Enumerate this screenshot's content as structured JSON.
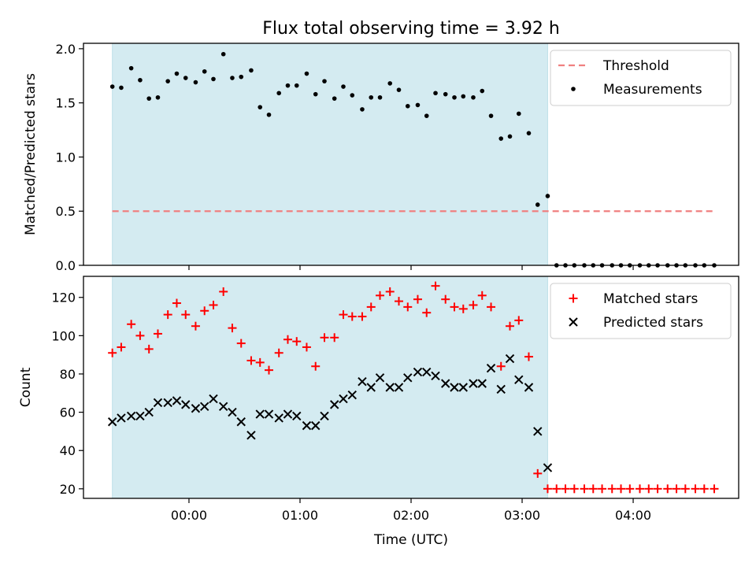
{
  "title": "Flux total observing time = 3.92 h",
  "chart_data": [
    {
      "type": "scatter",
      "panel": "top",
      "ylabel": "Matched/Predicted stars",
      "ylim": [
        0,
        2.05
      ],
      "yticks": [
        0.0,
        0.5,
        1.0,
        1.5,
        2.0
      ],
      "ytick_labels": [
        "0.0",
        "0.5",
        "1.0",
        "1.5",
        "2.0"
      ],
      "xlim_hours": [
        -0.95,
        4.95
      ],
      "shaded_span_hours": [
        -0.69,
        3.23
      ],
      "shade_color": "#d4ebf1",
      "legend_position": "upper-right",
      "threshold": {
        "name": "Threshold",
        "value": 0.5,
        "x_range_hours": [
          -0.69,
          4.73
        ],
        "color": "#f08080",
        "style": "dashed"
      },
      "series": [
        {
          "name": "Measurements",
          "color": "#000000",
          "marker": "dot",
          "x_hours": [
            -0.69,
            -0.61,
            -0.52,
            -0.44,
            -0.36,
            -0.28,
            -0.19,
            -0.11,
            -0.03,
            0.06,
            0.14,
            0.22,
            0.31,
            0.39,
            0.47,
            0.56,
            0.64,
            0.72,
            0.81,
            0.89,
            0.97,
            1.06,
            1.14,
            1.22,
            1.31,
            1.39,
            1.47,
            1.56,
            1.64,
            1.72,
            1.81,
            1.89,
            1.97,
            2.06,
            2.14,
            2.22,
            2.31,
            2.39,
            2.47,
            2.56,
            2.64,
            2.72,
            2.81,
            2.89,
            2.97,
            3.06,
            3.14,
            3.23,
            3.31,
            3.39,
            3.47,
            3.56,
            3.64,
            3.72,
            3.81,
            3.89,
            3.97,
            4.06,
            4.14,
            4.22,
            4.31,
            4.39,
            4.47,
            4.56,
            4.64,
            4.73
          ],
          "y": [
            1.65,
            1.64,
            1.82,
            1.71,
            1.54,
            1.55,
            1.7,
            1.77,
            1.73,
            1.69,
            1.79,
            1.72,
            1.95,
            1.73,
            1.74,
            1.8,
            1.46,
            1.39,
            1.59,
            1.66,
            1.66,
            1.77,
            1.58,
            1.7,
            1.54,
            1.65,
            1.57,
            1.44,
            1.55,
            1.55,
            1.68,
            1.62,
            1.47,
            1.48,
            1.38,
            1.59,
            1.58,
            1.55,
            1.56,
            1.55,
            1.61,
            1.38,
            1.17,
            1.19,
            1.4,
            1.22,
            0.56,
            0.64,
            0,
            0,
            0,
            0,
            0,
            0,
            0,
            0,
            0,
            0,
            0,
            0,
            0,
            0,
            0,
            0,
            0,
            0
          ]
        }
      ]
    },
    {
      "type": "scatter",
      "panel": "bottom",
      "xlabel": "Time (UTC)",
      "ylabel": "Count",
      "ylim": [
        15,
        131
      ],
      "yticks": [
        20,
        40,
        60,
        80,
        100,
        120
      ],
      "ytick_labels": [
        "20",
        "40",
        "60",
        "80",
        "100",
        "120"
      ],
      "xlim_hours": [
        -0.95,
        4.95
      ],
      "xticks_hours": [
        0,
        1,
        2,
        3,
        4
      ],
      "xtick_labels": [
        "00:00",
        "01:00",
        "02:00",
        "03:00",
        "04:00"
      ],
      "shaded_span_hours": [
        -0.69,
        3.23
      ],
      "legend_position": "upper-right",
      "series": [
        {
          "name": "Matched stars",
          "color": "#ff0000",
          "marker": "plus",
          "x_hours": [
            -0.69,
            -0.61,
            -0.52,
            -0.44,
            -0.36,
            -0.28,
            -0.19,
            -0.11,
            -0.03,
            0.06,
            0.14,
            0.22,
            0.31,
            0.39,
            0.47,
            0.56,
            0.64,
            0.72,
            0.81,
            0.89,
            0.97,
            1.06,
            1.14,
            1.22,
            1.31,
            1.39,
            1.47,
            1.56,
            1.64,
            1.72,
            1.81,
            1.89,
            1.97,
            2.06,
            2.14,
            2.22,
            2.31,
            2.39,
            2.47,
            2.56,
            2.64,
            2.72,
            2.81,
            2.89,
            2.97,
            3.06,
            3.14,
            3.23,
            3.31,
            3.39,
            3.47,
            3.56,
            3.64,
            3.72,
            3.81,
            3.89,
            3.97,
            4.06,
            4.14,
            4.22,
            4.31,
            4.39,
            4.47,
            4.56,
            4.64,
            4.73
          ],
          "y": [
            91,
            94,
            106,
            100,
            93,
            101,
            111,
            117,
            111,
            105,
            113,
            116,
            123,
            104,
            96,
            87,
            86,
            82,
            91,
            98,
            97,
            94,
            84,
            99,
            99,
            111,
            110,
            110,
            115,
            121,
            123,
            118,
            115,
            119,
            112,
            126,
            119,
            115,
            114,
            116,
            121,
            115,
            84,
            105,
            108,
            89,
            28,
            20,
            20,
            20,
            20,
            20,
            20,
            20,
            20,
            20,
            20,
            20,
            20,
            20,
            20,
            20,
            20,
            20,
            20,
            20
          ]
        },
        {
          "name": "Predicted stars",
          "color": "#000000",
          "marker": "x",
          "x_hours": [
            -0.69,
            -0.61,
            -0.52,
            -0.44,
            -0.36,
            -0.28,
            -0.19,
            -0.11,
            -0.03,
            0.06,
            0.14,
            0.22,
            0.31,
            0.39,
            0.47,
            0.56,
            0.64,
            0.72,
            0.81,
            0.89,
            0.97,
            1.06,
            1.14,
            1.22,
            1.31,
            1.39,
            1.47,
            1.56,
            1.64,
            1.72,
            1.81,
            1.89,
            1.97,
            2.06,
            2.14,
            2.22,
            2.31,
            2.39,
            2.47,
            2.56,
            2.64,
            2.72,
            2.81,
            2.89,
            2.97,
            3.06,
            3.14,
            3.23
          ],
          "y": [
            55,
            57,
            58,
            58,
            60,
            65,
            65,
            66,
            64,
            62,
            63,
            67,
            63,
            60,
            55,
            48,
            59,
            59,
            57,
            59,
            58,
            53,
            53,
            58,
            64,
            67,
            69,
            76,
            73,
            78,
            73,
            73,
            78,
            81,
            81,
            79,
            75,
            73,
            73,
            75,
            75,
            83,
            72,
            88,
            77,
            73,
            50,
            31
          ]
        }
      ]
    }
  ]
}
